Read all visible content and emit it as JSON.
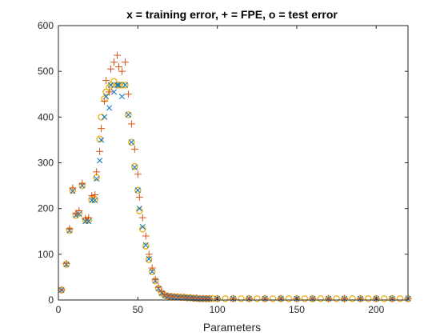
{
  "chart_data": {
    "type": "scatter",
    "title": "x = training error,   + = FPE,   o = test error",
    "xlabel": "Parameters",
    "ylabel": "",
    "xlim": [
      0,
      220
    ],
    "ylim": [
      0,
      600
    ],
    "xticks": [
      0,
      50,
      100,
      150,
      200
    ],
    "yticks": [
      0,
      100,
      200,
      300,
      400,
      500,
      600
    ],
    "grid": false,
    "box": true,
    "colors": {
      "training_error": "#0072BD",
      "fpe": "#D95319",
      "test_error": "#EDB120"
    },
    "series": [
      {
        "name": "training error",
        "marker": "x",
        "color": "#0072BD",
        "x": [
          2,
          5,
          7,
          9,
          11,
          13,
          15,
          17,
          19,
          21,
          23,
          24,
          26,
          27,
          29,
          30,
          32,
          33,
          35,
          37,
          38,
          40,
          42,
          44,
          46,
          48,
          50,
          51,
          53,
          55,
          57,
          59,
          61,
          63,
          65,
          67,
          69,
          71,
          73,
          75,
          77,
          79,
          81,
          83,
          85,
          87,
          89,
          91,
          93,
          95,
          100,
          110,
          120,
          130,
          140,
          150,
          160,
          170,
          180,
          190,
          200,
          210,
          220
        ],
        "y": [
          22,
          78,
          152,
          238,
          185,
          188,
          250,
          172,
          172,
          218,
          218,
          265,
          305,
          350,
          400,
          445,
          420,
          470,
          455,
          470,
          470,
          445,
          470,
          405,
          345,
          290,
          240,
          200,
          160,
          120,
          90,
          62,
          42,
          25,
          15,
          10,
          8,
          7,
          6,
          6,
          5,
          5,
          5,
          4,
          4,
          3,
          3,
          3,
          3,
          3,
          3,
          3,
          3,
          3,
          3,
          3,
          3,
          3,
          3,
          3,
          3,
          3,
          3
        ]
      },
      {
        "name": "FPE",
        "marker": "+",
        "color": "#D95319",
        "x": [
          2,
          5,
          7,
          9,
          11,
          13,
          15,
          17,
          19,
          21,
          23,
          24,
          26,
          27,
          29,
          30,
          32,
          33,
          35,
          37,
          38,
          40,
          42,
          44,
          46,
          48,
          50,
          51,
          53,
          55,
          57,
          59,
          61,
          63,
          65,
          67,
          69,
          71,
          73,
          75,
          77,
          79,
          81,
          83,
          85,
          87,
          89,
          91,
          93,
          95,
          100,
          110,
          120,
          130,
          140,
          150,
          160,
          170,
          180,
          190,
          200,
          210,
          220
        ],
        "y": [
          22,
          80,
          156,
          245,
          190,
          195,
          255,
          178,
          180,
          228,
          230,
          280,
          325,
          375,
          435,
          480,
          455,
          505,
          520,
          535,
          510,
          500,
          520,
          450,
          385,
          330,
          275,
          225,
          180,
          140,
          100,
          70,
          45,
          28,
          18,
          12,
          9,
          8,
          7,
          7,
          6,
          6,
          5,
          5,
          4,
          4,
          3,
          3,
          3,
          3,
          3,
          3,
          3,
          3,
          3,
          3,
          3,
          3,
          3,
          3,
          3,
          3,
          3
        ]
      },
      {
        "name": "test error",
        "marker": "o",
        "color": "#EDB120",
        "x": [
          2,
          5,
          7,
          9,
          11,
          13,
          15,
          17,
          19,
          21,
          23,
          24,
          26,
          27,
          29,
          30,
          32,
          33,
          35,
          37,
          38,
          40,
          42,
          44,
          46,
          48,
          50,
          51,
          53,
          55,
          57,
          59,
          61,
          63,
          65,
          67,
          69,
          71,
          73,
          75,
          77,
          79,
          81,
          83,
          85,
          87,
          89,
          91,
          93,
          95,
          97,
          100,
          105,
          110,
          115,
          120,
          125,
          130,
          135,
          140,
          145,
          150,
          155,
          160,
          165,
          170,
          175,
          180,
          185,
          190,
          195,
          200,
          205,
          210,
          215,
          220
        ],
        "y": [
          22,
          78,
          152,
          240,
          185,
          190,
          250,
          175,
          175,
          220,
          220,
          268,
          352,
          400,
          440,
          455,
          465,
          470,
          478,
          470,
          470,
          470,
          470,
          405,
          345,
          292,
          240,
          195,
          155,
          118,
          88,
          62,
          42,
          25,
          15,
          10,
          8,
          8,
          7,
          7,
          6,
          6,
          5,
          5,
          4,
          4,
          3,
          3,
          3,
          3,
          3,
          3,
          3,
          3,
          3,
          3,
          3,
          3,
          3,
          3,
          3,
          3,
          3,
          3,
          3,
          3,
          3,
          3,
          3,
          3,
          3,
          3,
          3,
          3,
          3,
          3
        ]
      }
    ]
  }
}
